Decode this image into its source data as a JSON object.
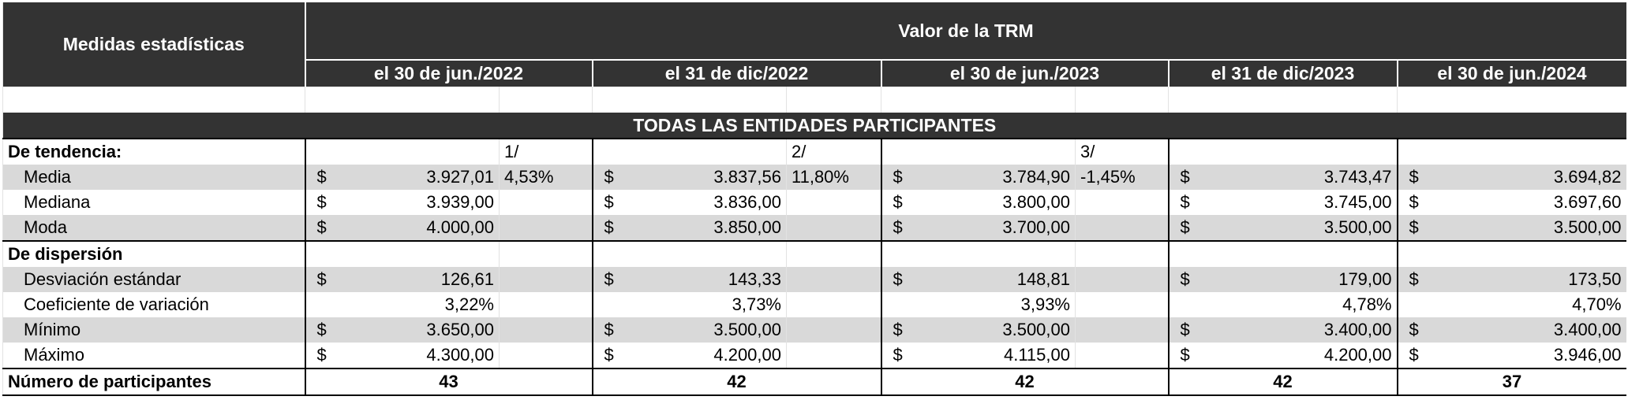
{
  "header": {
    "measures_label": "Medidas estadísticas",
    "trm_label": "Valor de la TRM",
    "periods": [
      "el 30 de jun./2022",
      "el 31 de dic/2022",
      "el 30 de jun./2023",
      "el 31 de dic/2023",
      "el 30 de jun./2024"
    ]
  },
  "section_title": "TODAS LAS ENTIDADES PARTICIPANTES",
  "rows": [
    {
      "label": "De tendencia:",
      "type": "group",
      "notes": [
        "1/",
        "2/",
        "3/",
        null,
        null
      ]
    },
    {
      "label": "Media",
      "gray": true,
      "dollar": true,
      "values": [
        "3.927,01",
        "3.837,56",
        "3.784,90",
        "3.743,47",
        "3.694,82"
      ],
      "notes": [
        "4,53%",
        "11,80%",
        "-1,45%",
        null,
        null
      ]
    },
    {
      "label": "Mediana",
      "dollar": true,
      "values": [
        "3.939,00",
        "3.836,00",
        "3.800,00",
        "3.745,00",
        "3.697,60"
      ]
    },
    {
      "label": "Moda",
      "gray": true,
      "dollar": true,
      "values": [
        "4.000,00",
        "3.850,00",
        "3.700,00",
        "3.500,00",
        "3.500,00"
      ]
    },
    {
      "label": "De dispersión",
      "type": "group"
    },
    {
      "label": "Desviación estándar",
      "gray": true,
      "dollar": true,
      "values": [
        "126,61",
        "143,33",
        "148,81",
        "179,00",
        "173,50"
      ]
    },
    {
      "label": "Coeficiente de variación",
      "dollar": false,
      "values": [
        "3,22%",
        "3,73%",
        "3,93%",
        "4,78%",
        "4,70%"
      ]
    },
    {
      "label": "Mínimo",
      "gray": true,
      "dollar": true,
      "values": [
        "3.650,00",
        "3.500,00",
        "3.500,00",
        "3.400,00",
        "3.400,00"
      ]
    },
    {
      "label": "Máximo",
      "dollar": true,
      "values": [
        "4.300,00",
        "4.200,00",
        "4.115,00",
        "4.200,00",
        "3.946,00"
      ]
    }
  ],
  "participants": {
    "label": "Número de participantes",
    "values": [
      "43",
      "42",
      "42",
      "42",
      "37"
    ]
  },
  "colors": {
    "header_bg": "#333333",
    "stripe": "#d9d9d9"
  }
}
